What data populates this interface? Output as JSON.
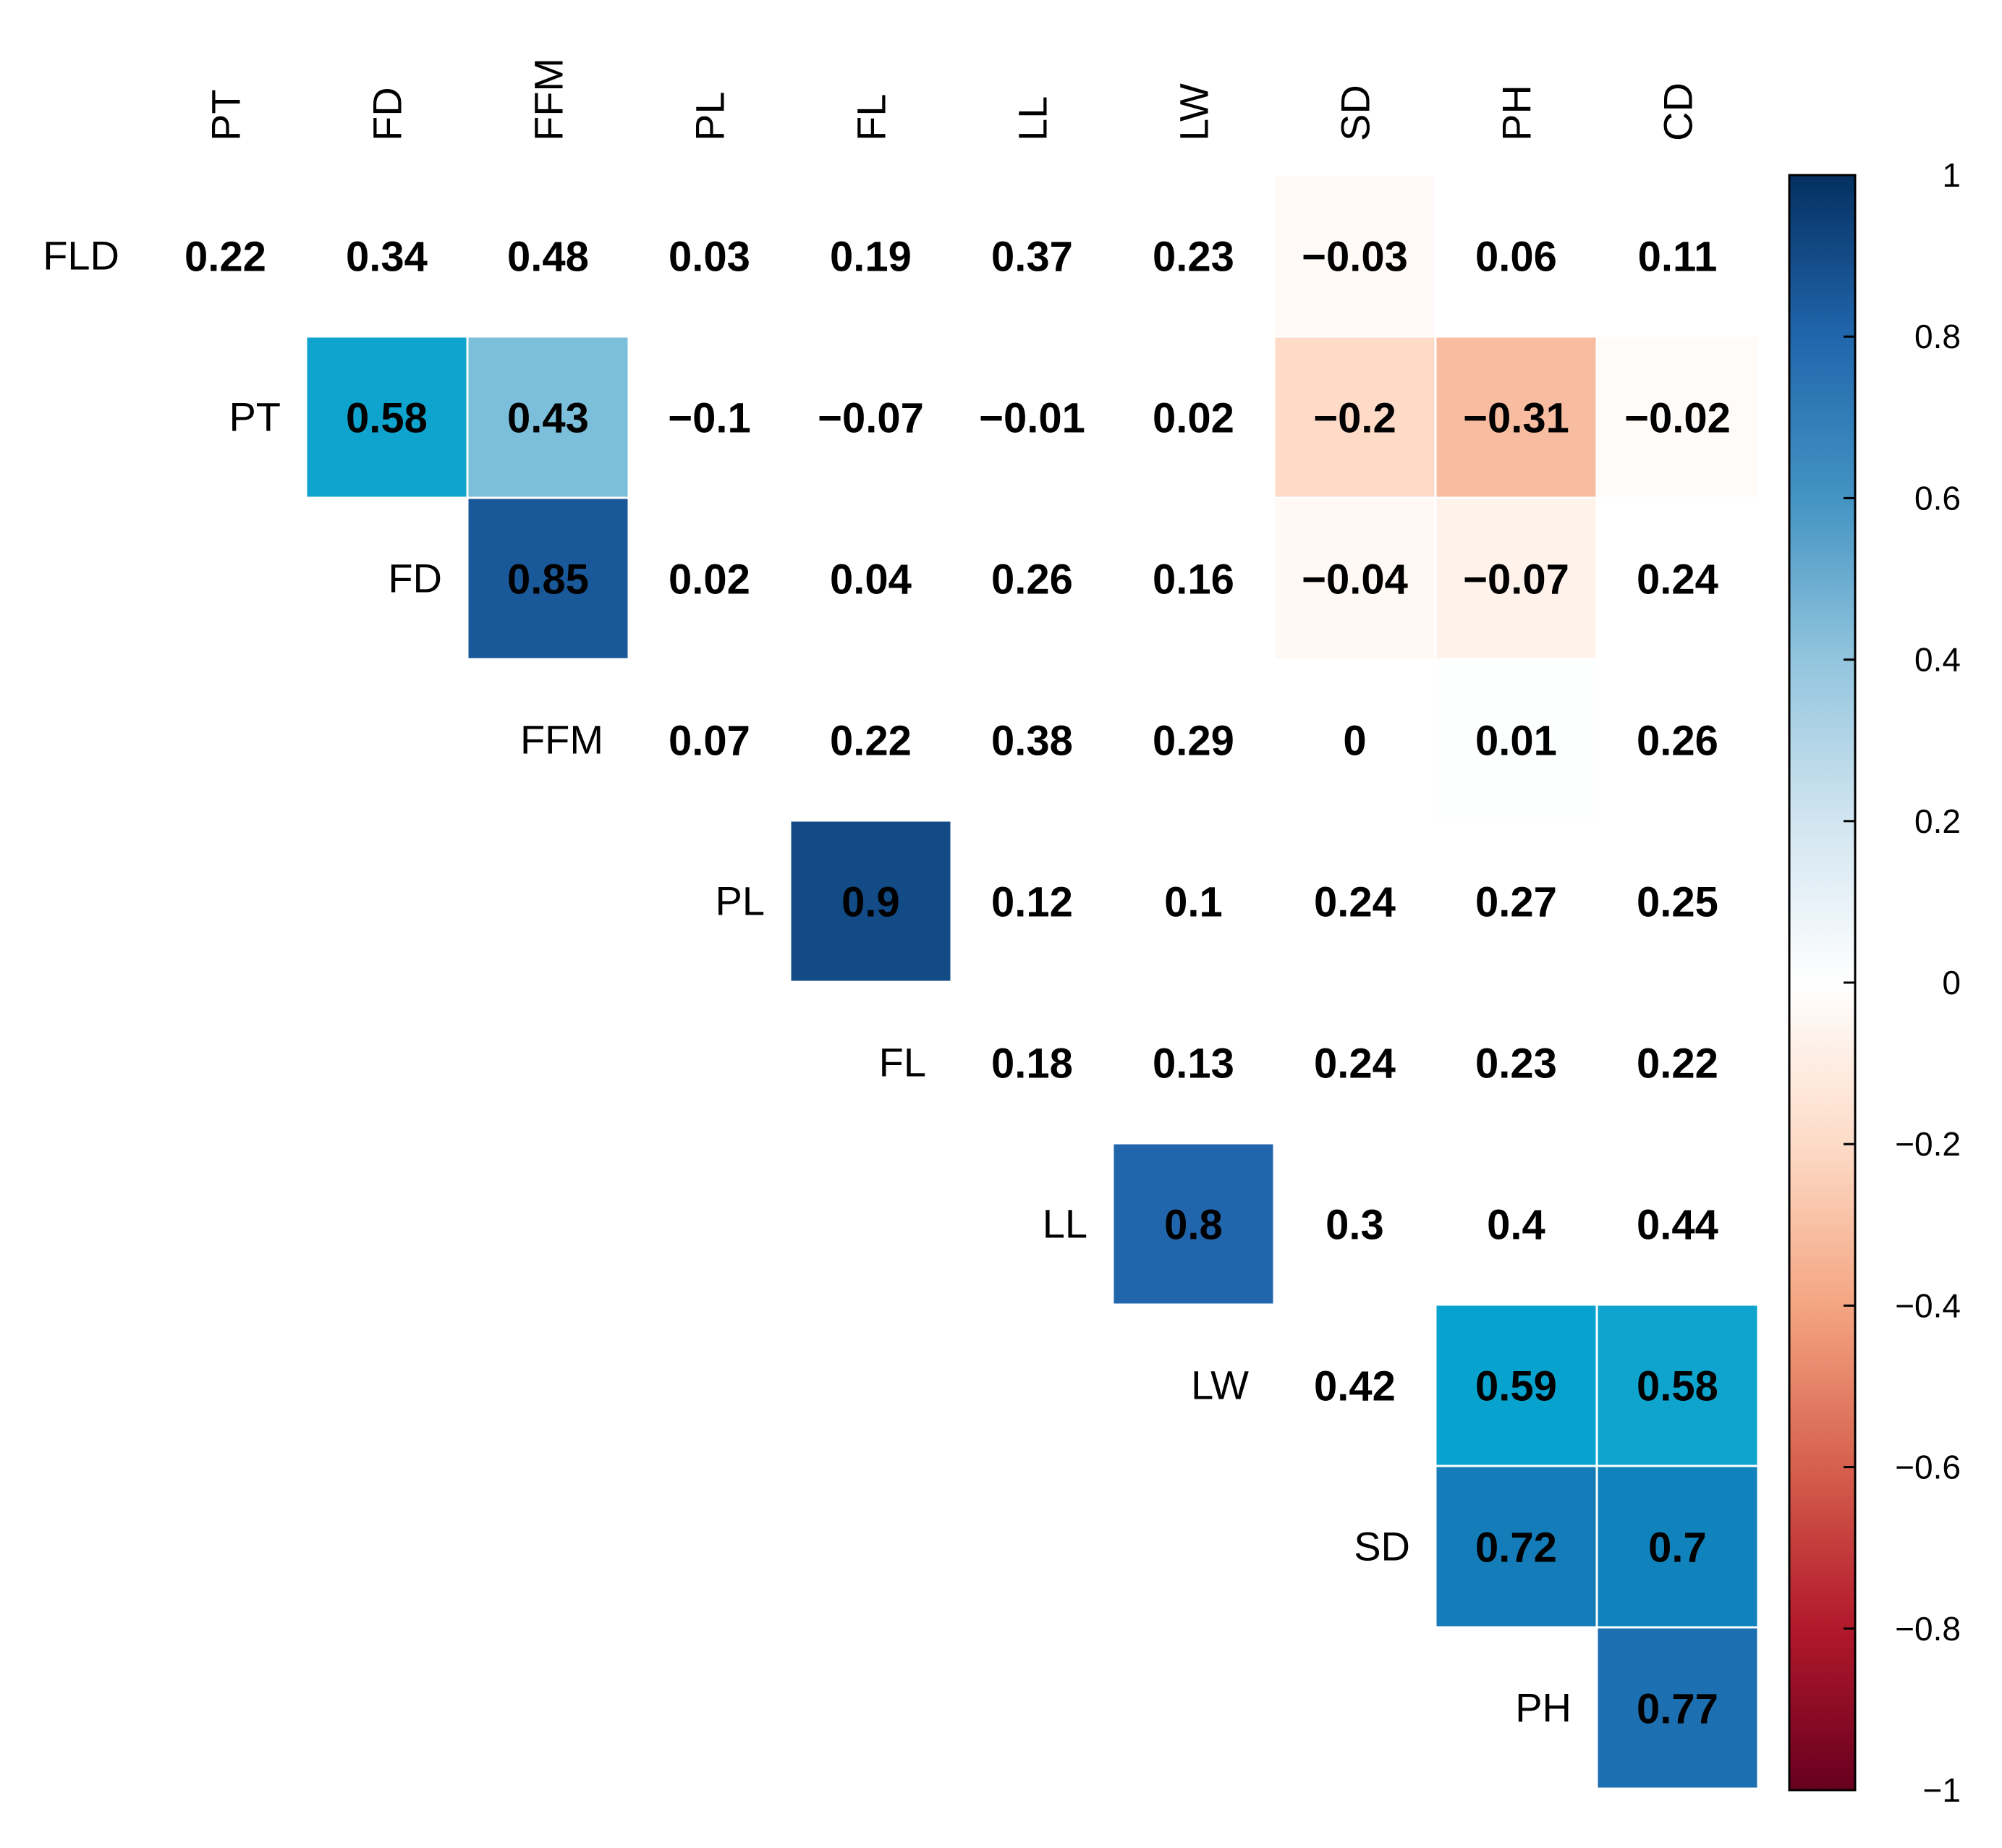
{
  "chart_data": {
    "type": "heatmap",
    "title": "",
    "xlabel": "",
    "ylabel": "",
    "row_labels": [
      "FLD",
      "PT",
      "FD",
      "FFM",
      "PL",
      "FL",
      "LL",
      "LW",
      "SD",
      "PH"
    ],
    "col_labels": [
      "PT",
      "FD",
      "FFM",
      "PL",
      "FL",
      "LL",
      "LW",
      "SD",
      "PH",
      "CD"
    ],
    "matrix": [
      [
        0.22,
        0.34,
        0.48,
        0.03,
        0.19,
        0.37,
        0.23,
        -0.03,
        0.06,
        0.11
      ],
      [
        null,
        0.58,
        0.43,
        -0.1,
        -0.07,
        -0.01,
        0.02,
        -0.2,
        -0.31,
        -0.02
      ],
      [
        null,
        null,
        0.85,
        0.02,
        0.04,
        0.26,
        0.16,
        -0.04,
        -0.07,
        0.24
      ],
      [
        null,
        null,
        null,
        0.07,
        0.22,
        0.38,
        0.29,
        0,
        0.01,
        0.26
      ],
      [
        null,
        null,
        null,
        null,
        0.9,
        0.12,
        0.1,
        0.24,
        0.27,
        0.25
      ],
      [
        null,
        null,
        null,
        null,
        null,
        0.18,
        0.13,
        0.24,
        0.23,
        0.22
      ],
      [
        null,
        null,
        null,
        null,
        null,
        null,
        0.8,
        0.3,
        0.4,
        0.44
      ],
      [
        null,
        null,
        null,
        null,
        null,
        null,
        null,
        0.42,
        0.59,
        0.58
      ],
      [
        null,
        null,
        null,
        null,
        null,
        null,
        null,
        null,
        0.72,
        0.7
      ],
      [
        null,
        null,
        null,
        null,
        null,
        null,
        null,
        null,
        null,
        0.77
      ]
    ],
    "value_labels": [
      [
        "0.22",
        "0.34",
        "0.48",
        "0.03",
        "0.19",
        "0.37",
        "0.23",
        "−0.03",
        "0.06",
        "0.11"
      ],
      [
        null,
        "0.58",
        "0.43",
        "−0.1",
        "−0.07",
        "−0.01",
        "0.02",
        "−0.2",
        "−0.31",
        "−0.02"
      ],
      [
        null,
        null,
        "0.85",
        "0.02",
        "0.04",
        "0.26",
        "0.16",
        "−0.04",
        "−0.07",
        "0.24"
      ],
      [
        null,
        null,
        null,
        "0.07",
        "0.22",
        "0.38",
        "0.29",
        "0",
        "0.01",
        "0.26"
      ],
      [
        null,
        null,
        null,
        null,
        "0.9",
        "0.12",
        "0.1",
        "0.24",
        "0.27",
        "0.25"
      ],
      [
        null,
        null,
        null,
        null,
        null,
        "0.18",
        "0.13",
        "0.24",
        "0.23",
        "0.22"
      ],
      [
        null,
        null,
        null,
        null,
        null,
        null,
        "0.8",
        "0.3",
        "0.4",
        "0.44"
      ],
      [
        null,
        null,
        null,
        null,
        null,
        null,
        null,
        "0.42",
        "0.59",
        "0.58"
      ],
      [
        null,
        null,
        null,
        null,
        null,
        null,
        null,
        null,
        "0.72",
        "0.7"
      ],
      [
        null,
        null,
        null,
        null,
        null,
        null,
        null,
        null,
        null,
        "0.77"
      ]
    ],
    "significant_cells": [
      [
        1,
        1
      ],
      [
        1,
        2
      ],
      [
        1,
        7
      ],
      [
        1,
        8
      ],
      [
        1,
        9
      ],
      [
        2,
        2
      ],
      [
        2,
        7
      ],
      [
        2,
        8
      ],
      [
        0,
        7
      ],
      [
        3,
        7
      ],
      [
        3,
        8
      ],
      [
        4,
        4
      ],
      [
        6,
        6
      ],
      [
        7,
        8
      ],
      [
        7,
        9
      ],
      [
        8,
        8
      ],
      [
        8,
        9
      ],
      [
        9,
        9
      ]
    ],
    "colorbar": {
      "range": [
        -1,
        1
      ],
      "ticks": [
        1,
        0.8,
        0.6,
        0.4,
        0.2,
        0,
        -0.2,
        -0.4,
        -0.6,
        -0.8,
        -1
      ],
      "tick_labels": [
        "1",
        "0.8",
        "0.6",
        "0.4",
        "0.2",
        "0",
        "−0.2",
        "−0.4",
        "−0.6",
        "−0.8",
        "−1"
      ],
      "placement": "right"
    },
    "colors": {
      "positive_strong": "#053061",
      "positive_mid": "#2166AC",
      "positive_light": "#4393C3",
      "positive_pale": "#92C5DE",
      "neutral": "#F7F7F7",
      "negative_pale": "#FDDBC7",
      "negative_light": "#F4A582",
      "negative_mid": "#D6604D",
      "negative_strong": "#67001F"
    }
  }
}
